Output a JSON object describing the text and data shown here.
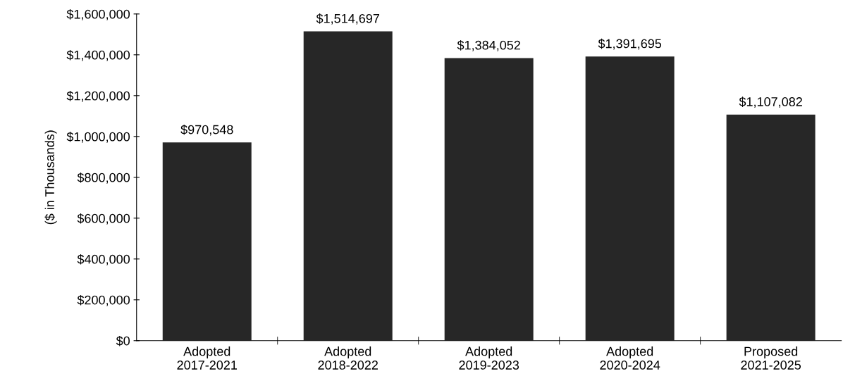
{
  "chart_data": {
    "type": "bar",
    "ylabel": "($ in Thousands)",
    "categories": [
      "Adopted\n2017-2021",
      "Adopted\n2018-2022",
      "Adopted\n2019-2023",
      "Adopted\n2020-2024",
      "Proposed\n2021-2025"
    ],
    "values": [
      970548,
      1514697,
      1384052,
      1391695,
      1107082
    ],
    "value_labels": [
      "$970,548",
      "$1,514,697",
      "$1,384,052",
      "$1,391,695",
      "$1,107,082"
    ],
    "color": "#272727",
    "ylim": [
      0,
      1600000
    ],
    "yticks": [
      {
        "value": 0,
        "label": "$0"
      },
      {
        "value": 200000,
        "label": "$200,000"
      },
      {
        "value": 400000,
        "label": "$400,000"
      },
      {
        "value": 600000,
        "label": "$600,000"
      },
      {
        "value": 800000,
        "label": "$800,000"
      },
      {
        "value": 1000000,
        "label": "$1,000,000"
      },
      {
        "value": 1200000,
        "label": "$1,200,000"
      },
      {
        "value": 1400000,
        "label": "$1,400,000"
      },
      {
        "value": 1600000,
        "label": "$1,600,000"
      }
    ],
    "grid": false,
    "legend": false
  }
}
